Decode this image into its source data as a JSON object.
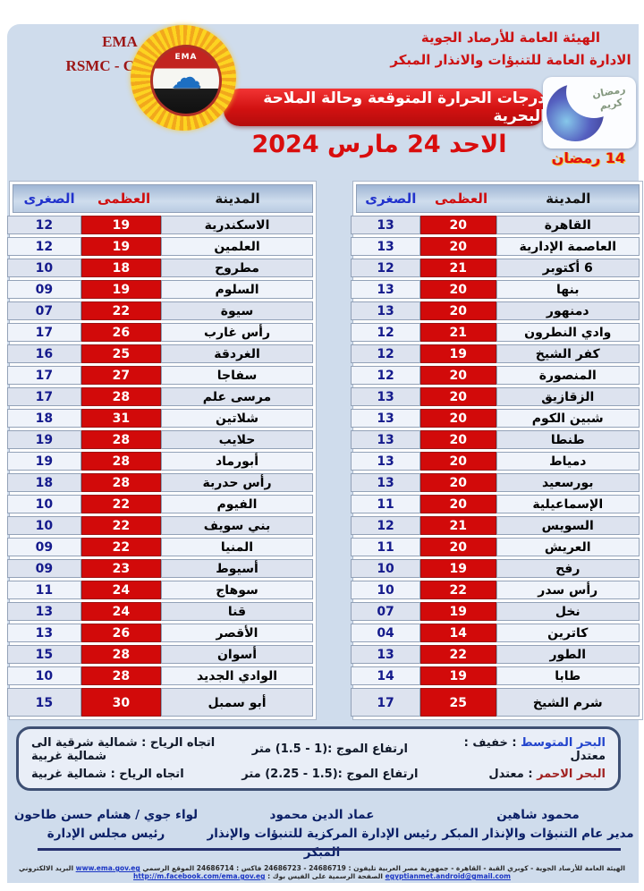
{
  "header": {
    "ema_label": "EMA",
    "rsmc_label": "RSMC - CAIRO",
    "org_line1": "الهيئة العامة للأرصاد الجوية",
    "org_line2": "الادارة العامة للتنبؤات والانذار المبكر",
    "logo_text": "EMA"
  },
  "banner": {
    "title": "درجات الحرارة المتوقعة وحالة الملاحة البحرية"
  },
  "date_line": "الاحد 24 مارس 2024",
  "ramadan": {
    "day_label": "14 رمضان",
    "calligraphy": "رمضان كريم"
  },
  "table_headers": {
    "city": "المدينة",
    "max": "العظمى",
    "min": "الصغرى"
  },
  "right_table": {
    "rows": [
      {
        "city": "القاهرة",
        "max": "20",
        "min": "13"
      },
      {
        "city": "العاصمة الإدارية",
        "max": "20",
        "min": "13"
      },
      {
        "city": "6 أكتوبر",
        "max": "21",
        "min": "12"
      },
      {
        "city": "بنها",
        "max": "20",
        "min": "13"
      },
      {
        "city": "دمنهور",
        "max": "20",
        "min": "13"
      },
      {
        "city": "وادي النطرون",
        "max": "21",
        "min": "12"
      },
      {
        "city": "كفر الشيخ",
        "max": "19",
        "min": "12"
      },
      {
        "city": "المنصورة",
        "max": "20",
        "min": "12"
      },
      {
        "city": "الزقازيق",
        "max": "20",
        "min": "13"
      },
      {
        "city": "شبين الكوم",
        "max": "20",
        "min": "13"
      },
      {
        "city": "طنطا",
        "max": "20",
        "min": "13"
      },
      {
        "city": "دمياط",
        "max": "20",
        "min": "13"
      },
      {
        "city": "بورسعيد",
        "max": "20",
        "min": "13"
      },
      {
        "city": "الإسماعيلية",
        "max": "20",
        "min": "11"
      },
      {
        "city": "السويس",
        "max": "21",
        "min": "12"
      },
      {
        "city": "العريش",
        "max": "20",
        "min": "11"
      },
      {
        "city": "رفح",
        "max": "19",
        "min": "10"
      },
      {
        "city": "رأس سدر",
        "max": "22",
        "min": "10"
      },
      {
        "city": "نخل",
        "max": "19",
        "min": "07"
      },
      {
        "city": "كاترين",
        "max": "14",
        "min": "04"
      },
      {
        "city": "الطور",
        "max": "22",
        "min": "13"
      },
      {
        "city": "طابا",
        "max": "19",
        "min": "14"
      },
      {
        "city": "شرم الشيخ",
        "max": "25",
        "min": "17"
      }
    ]
  },
  "left_table": {
    "rows": [
      {
        "city": "الاسكندرية",
        "max": "19",
        "min": "12"
      },
      {
        "city": "العلمين",
        "max": "19",
        "min": "12"
      },
      {
        "city": "مطروح",
        "max": "18",
        "min": "10"
      },
      {
        "city": "السلوم",
        "max": "19",
        "min": "09"
      },
      {
        "city": "سيوة",
        "max": "22",
        "min": "07"
      },
      {
        "city": "رأس غارب",
        "max": "26",
        "min": "17"
      },
      {
        "city": "الغردقة",
        "max": "25",
        "min": "16"
      },
      {
        "city": "سفاجا",
        "max": "27",
        "min": "17"
      },
      {
        "city": "مرسى علم",
        "max": "28",
        "min": "17"
      },
      {
        "city": "شلاتين",
        "max": "31",
        "min": "18"
      },
      {
        "city": "حلايب",
        "max": "28",
        "min": "19"
      },
      {
        "city": "أبورماد",
        "max": "28",
        "min": "19"
      },
      {
        "city": "رأس حدربة",
        "max": "28",
        "min": "18"
      },
      {
        "city": "الفيوم",
        "max": "22",
        "min": "10"
      },
      {
        "city": "بني سويف",
        "max": "22",
        "min": "10"
      },
      {
        "city": "المنيا",
        "max": "22",
        "min": "09"
      },
      {
        "city": "أسيوط",
        "max": "23",
        "min": "09"
      },
      {
        "city": "سوهاج",
        "max": "24",
        "min": "11"
      },
      {
        "city": "قنا",
        "max": "24",
        "min": "13"
      },
      {
        "city": "الأقصر",
        "max": "26",
        "min": "13"
      },
      {
        "city": "أسوان",
        "max": "28",
        "min": "15"
      },
      {
        "city": "الوادي الجديد",
        "max": "28",
        "min": "10"
      },
      {
        "city": "أبو سمبل",
        "max": "30",
        "min": "15"
      }
    ]
  },
  "marine": {
    "rows": [
      {
        "sea": "البحر المتوسط",
        "sea_color": "#2244cc",
        "state": ": خفيف : معتدل",
        "wave": "ارتفاع الموج :(1 - 1.5) متر",
        "wind": "اتجاه الرياح : شمالية شرقية الى شمالية غربية"
      },
      {
        "sea": "البحر الاحمر",
        "sea_color": "#a02020",
        "state": ":  معتدل",
        "wave": "ارتفاع الموج :(1.5 - 2.25) متر",
        "wind": "اتجاه الرياح : شمالية غربية"
      }
    ]
  },
  "signatures": [
    {
      "name": "محمود شاهين",
      "title": "مدير عام التنبؤات والإنذار المبكر"
    },
    {
      "name": "عماد الدين محمود",
      "title": "رئيس الإدارة المركزية للتنبؤات والإنذار المبكر"
    },
    {
      "name": "لواء جوي / هشام حسن طاحون",
      "title": "رئيس مجلس الإدارة"
    }
  ],
  "footer": {
    "address": "الهيئة العامة للأرصاد الجوية - كوبري القبة - القاهرة - جمهورية مصر العربية تليفون : 24686719 - 24686723 فاكس : 24686714",
    "site_label": "الموقع الرسمي",
    "site_url": "www.ema.gov.eg",
    "email_label": "البريد الالكتروني",
    "email": "egyptianmet.android@gmail.com",
    "facebook_label": "الصفحة الرسمية على الفيس بوك :",
    "facebook_url": "http://m.facebook.com/ema.gov.eg"
  },
  "colors": {
    "panel_bg": "#cfdcec",
    "max_cell_red": "#d20a0a",
    "min_number_navy": "#141a8c",
    "banner_red": "#d11111",
    "header_red_text": "#cc1212",
    "signature_navy": "#0b1f66"
  }
}
